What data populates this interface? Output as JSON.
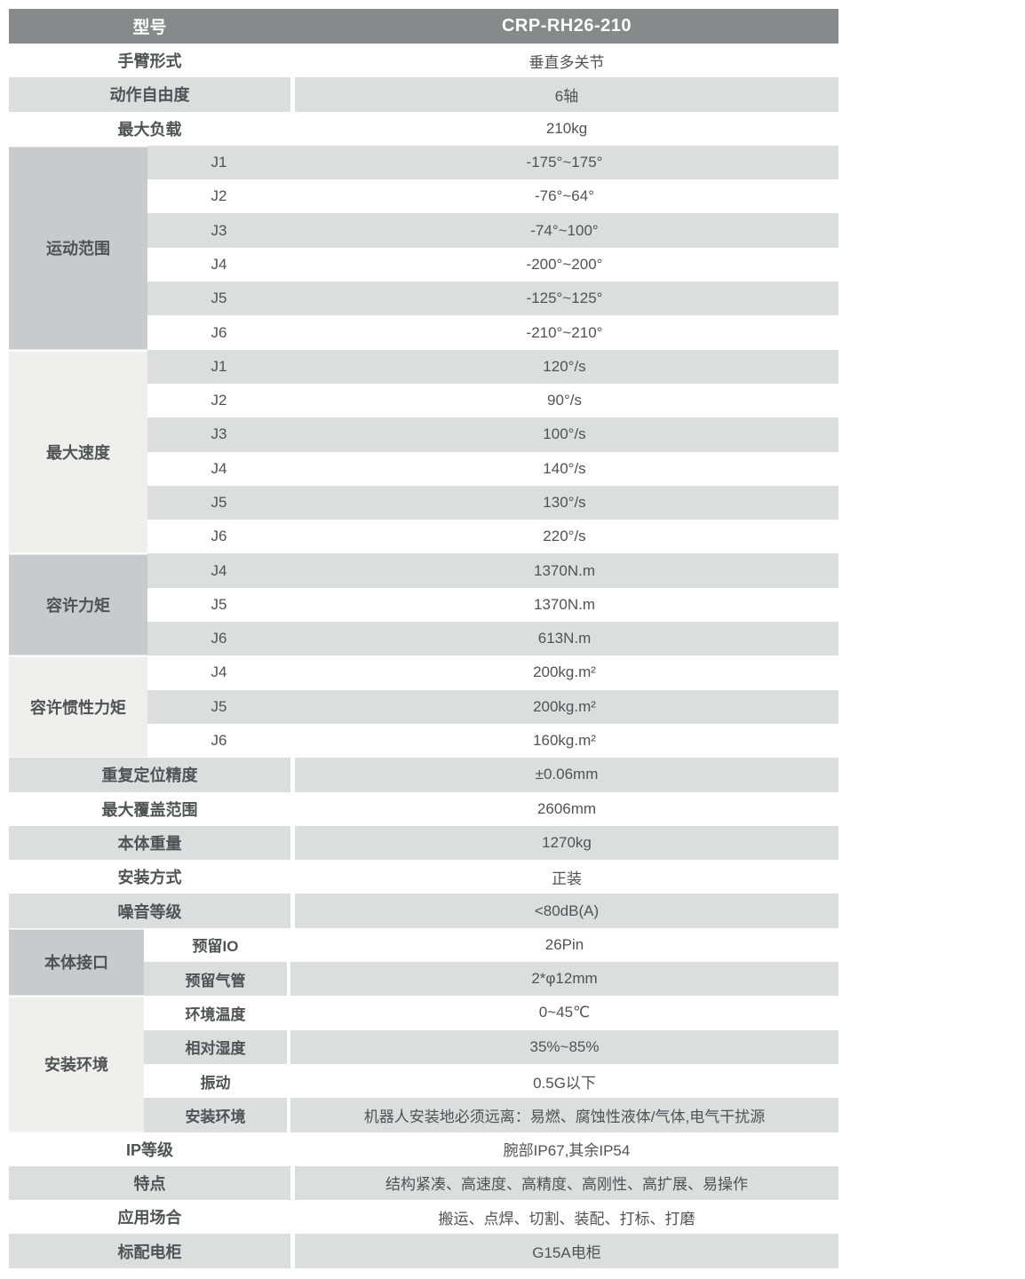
{
  "colors": {
    "header_bg": "#87898b",
    "header_text": "#ffffff",
    "row_stripe": "#dcdedd",
    "group_dark": "#c9cacb",
    "group_light": "#efefee",
    "text": "#515254"
  },
  "header": {
    "label": "型号",
    "value": "CRP-RH26-210"
  },
  "rows": [
    {
      "type": "simple",
      "label": "手臂形式",
      "value": "垂直多关节"
    },
    {
      "type": "simple",
      "label": "动作自由度",
      "value": "6轴"
    },
    {
      "type": "simple",
      "label": "最大负载",
      "value": "210kg"
    },
    {
      "type": "group",
      "label": "运动范围",
      "shade": "dark",
      "merged": true,
      "subrows": [
        {
          "label": "J1",
          "value": "-175°~175°"
        },
        {
          "label": "J2",
          "value": "-76°~64°"
        },
        {
          "label": "J3",
          "value": "-74°~100°"
        },
        {
          "label": "J4",
          "value": "-200°~200°"
        },
        {
          "label": "J5",
          "value": "-125°~125°"
        },
        {
          "label": "J6",
          "value": "-210°~210°"
        }
      ]
    },
    {
      "type": "group",
      "label": "最大速度",
      "shade": "light",
      "merged": true,
      "subrows": [
        {
          "label": "J1",
          "value": "120°/s"
        },
        {
          "label": "J2",
          "value": "90°/s"
        },
        {
          "label": "J3",
          "value": "100°/s"
        },
        {
          "label": "J4",
          "value": "140°/s"
        },
        {
          "label": "J5",
          "value": "130°/s"
        },
        {
          "label": "J6",
          "value": "220°/s"
        }
      ]
    },
    {
      "type": "group",
      "label": "容许力矩",
      "shade": "dark",
      "merged": true,
      "subrows": [
        {
          "label": "J4",
          "value": "1370N.m"
        },
        {
          "label": "J5",
          "value": "1370N.m"
        },
        {
          "label": "J6",
          "value": "613N.m"
        }
      ]
    },
    {
      "type": "group",
      "label": "容许惯性力矩",
      "shade": "light",
      "merged": true,
      "subrows": [
        {
          "label": "J4",
          "value": "200kg.m²"
        },
        {
          "label": "J5",
          "value": "200kg.m²"
        },
        {
          "label": "J6",
          "value": "160kg.m²"
        }
      ]
    },
    {
      "type": "simple",
      "label": "重复定位精度",
      "value": "±0.06mm"
    },
    {
      "type": "simple",
      "label": "最大覆盖范围",
      "value": "2606mm"
    },
    {
      "type": "simple",
      "label": "本体重量",
      "value": "1270kg"
    },
    {
      "type": "simple",
      "label": "安装方式",
      "value": "正装"
    },
    {
      "type": "simple",
      "label": "噪音等级",
      "value": "<80dB(A)"
    },
    {
      "type": "group",
      "label": "本体接口",
      "shade": "dark",
      "merged": false,
      "subrows": [
        {
          "label": "预留IO",
          "value": "26Pin"
        },
        {
          "label": "预留气管",
          "value": "2*φ12mm"
        }
      ]
    },
    {
      "type": "group",
      "label": "安装环境",
      "shade": "light",
      "merged": false,
      "subrows": [
        {
          "label": "环境温度",
          "value": "0~45℃"
        },
        {
          "label": "相对湿度",
          "value": "35%~85%"
        },
        {
          "label": "振动",
          "value": "0.5G以下"
        },
        {
          "label": "安装环境",
          "value": "机器人安装地必须远离：易燃、腐蚀性液体/气体,电气干扰源"
        }
      ]
    },
    {
      "type": "simple",
      "label": "IP等级",
      "value": "腕部IP67,其余IP54"
    },
    {
      "type": "simple",
      "label": "特点",
      "value": "结构紧凑、高速度、高精度、高刚性、高扩展、易操作"
    },
    {
      "type": "simple",
      "label": "应用场合",
      "value": "搬运、点焊、切割、装配、打标、打磨"
    },
    {
      "type": "simple",
      "label": "标配电柜",
      "value": "G15A电柜"
    }
  ]
}
